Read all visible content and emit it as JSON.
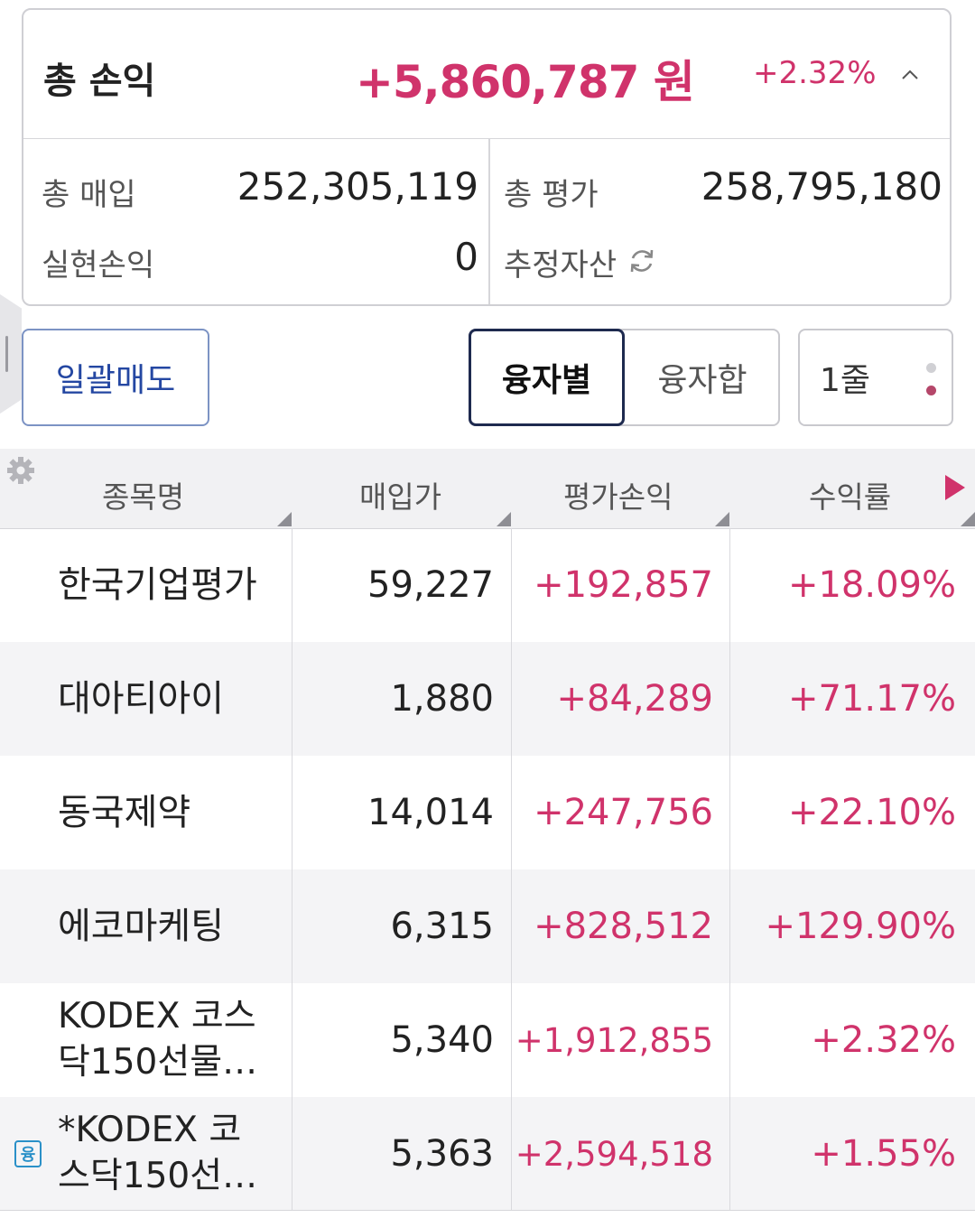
{
  "summary": {
    "title": "총 손익",
    "profit": "+5,860,787 원",
    "profit_rate": "+2.32%",
    "purchase_label": "총 매입",
    "purchase_value": "252,305,119",
    "valuation_label": "총 평가",
    "valuation_value": "258,795,180",
    "realized_label": "실현손익",
    "realized_value": "0",
    "estimated_label": "추정자산"
  },
  "controls": {
    "bulk_sell": "일괄매도",
    "seg_by_loan": "융자별",
    "seg_loan_sum": "융자합",
    "line_count": "1줄"
  },
  "table": {
    "headers": [
      "종목명",
      "매입가",
      "평가손익",
      "수익률"
    ],
    "rows": [
      {
        "name": "한국기업평가",
        "buy_price": "59,227",
        "pl": "+192,857",
        "rate": "+18.09%"
      },
      {
        "name": "대아티아이",
        "buy_price": "1,880",
        "pl": "+84,289",
        "rate": "+71.17%"
      },
      {
        "name": "동국제약",
        "buy_price": "14,014",
        "pl": "+247,756",
        "rate": "+22.10%"
      },
      {
        "name": "에코마케팅",
        "buy_price": "6,315",
        "pl": "+828,512",
        "rate": "+129.90%"
      },
      {
        "name_line1": "KODEX 코스",
        "name_line2": "닥150선물…",
        "buy_price": "5,340",
        "pl": "+1,912,855",
        "rate": "+2.32%"
      },
      {
        "badge": "융",
        "name_line1": "*KODEX 코",
        "name_line2": "스닥150선…",
        "buy_price": "5,363",
        "pl": "+2,594,518",
        "rate": "+1.55%"
      }
    ]
  },
  "colors": {
    "positive": "#d0336b",
    "sell_button": "#2447a2",
    "loan_badge": "#2a90c8"
  }
}
